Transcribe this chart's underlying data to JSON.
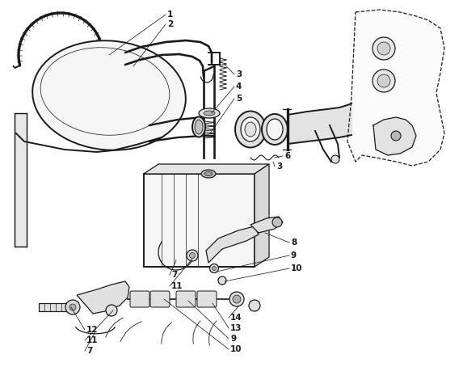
{
  "bg_color": "#ffffff",
  "line_color": "#1a1a1a",
  "fig_width": 5.73,
  "fig_height": 4.75,
  "dpi": 100,
  "font_size": 7.5,
  "line_width": 0.9
}
